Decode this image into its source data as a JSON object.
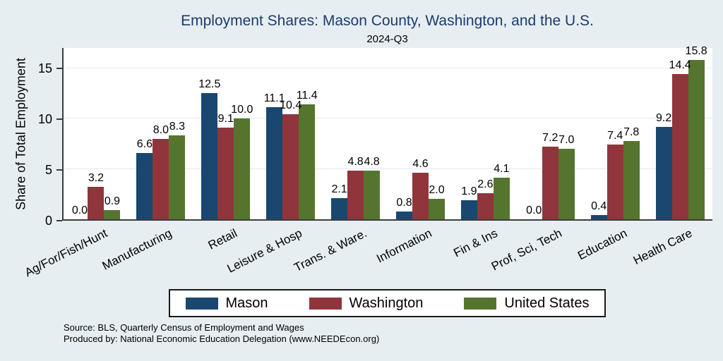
{
  "chart_data": {
    "type": "bar",
    "title": "Employment Shares: Mason County, Washington, and the U.S.",
    "subtitle": "2024-Q3",
    "ylabel": "Share of Total Employment",
    "xlabel": "",
    "categories": [
      "Ag/For/Fish/Hunt",
      "Manufacturing",
      "Retail",
      "Leisure & Hosp",
      "Trans. & Ware.",
      "Information",
      "Fin & Ins",
      "Prof, Sci, Tech",
      "Education",
      "Health Care"
    ],
    "series": [
      {
        "name": "Mason",
        "color": "#1a476f",
        "values": [
          0.0,
          6.6,
          12.5,
          11.1,
          2.1,
          0.8,
          1.9,
          0.0,
          0.4,
          9.2
        ]
      },
      {
        "name": "Washington",
        "color": "#90353b",
        "values": [
          3.2,
          8.0,
          9.1,
          10.4,
          4.8,
          4.6,
          2.6,
          7.2,
          7.4,
          14.4
        ]
      },
      {
        "name": "United States",
        "color": "#55752f",
        "values": [
          0.9,
          8.3,
          10.0,
          11.4,
          4.8,
          2.0,
          4.1,
          7.0,
          7.8,
          15.8
        ]
      }
    ],
    "ylim": [
      0,
      17
    ],
    "yticks": [
      0,
      5,
      10,
      15
    ],
    "grid": true,
    "legend_position": "bottom",
    "value_label_decimals": 1
  },
  "footer": {
    "source_line": "Source: BLS, Quarterly Census of Employment and Wages",
    "produced_line": "Produced by: National Economic Education Delegation (www.NEEDEcon.org)"
  },
  "colors": {
    "background": "#e7eef1",
    "plot_background": "#ffffff",
    "title": "#1c3a6e",
    "axis": "#3c3c3c",
    "gridline": "#e3eaee",
    "text": "#000000"
  }
}
